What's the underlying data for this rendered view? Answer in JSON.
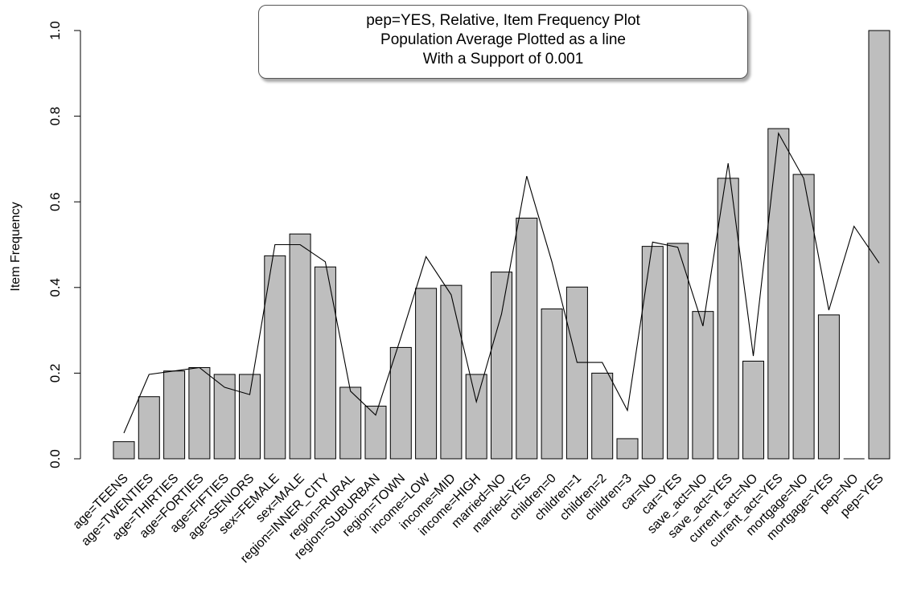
{
  "chart_data": {
    "type": "bar",
    "title_lines": [
      "pep=YES, Relative, Item Frequency Plot",
      "Population Average Plotted as a line",
      "With a Support of 0.001"
    ],
    "xlabel": "",
    "ylabel": "Item Frequency",
    "ylim": [
      0,
      1.0
    ],
    "yticks": [
      "0.0",
      "0.2",
      "0.4",
      "0.6",
      "0.8",
      "1.0"
    ],
    "grid": false,
    "categories": [
      "age=TEENS",
      "age=TWENTIES",
      "age=THIRTIES",
      "age=FORTIES",
      "age=FIFTIES",
      "age=SENIORS",
      "sex=FEMALE",
      "sex=MALE",
      "region=INNER_CITY",
      "region=RURAL",
      "region=SUBURBAN",
      "region=TOWN",
      "income=LOW",
      "income=MID",
      "income=HIGH",
      "married=NO",
      "married=YES",
      "children=0",
      "children=1",
      "children=2",
      "children=3",
      "car=NO",
      "car=YES",
      "save_act=NO",
      "save_act=YES",
      "current_act=NO",
      "current_act=YES",
      "mortgage=NO",
      "mortgage=YES",
      "pep=NO",
      "pep=YES"
    ],
    "series": [
      {
        "type": "bar",
        "color": "#bebebe",
        "values": [
          0.04,
          0.145,
          0.205,
          0.213,
          0.197,
          0.197,
          0.474,
          0.525,
          0.448,
          0.167,
          0.123,
          0.26,
          0.398,
          0.405,
          0.197,
          0.436,
          0.562,
          0.35,
          0.401,
          0.2,
          0.047,
          0.496,
          0.503,
          0.344,
          0.655,
          0.228,
          0.771,
          0.664,
          0.336,
          0.0,
          1.0
        ]
      },
      {
        "type": "line",
        "color": "#000000",
        "values": [
          0.06,
          0.197,
          0.205,
          0.213,
          0.167,
          0.15,
          0.5,
          0.5,
          0.46,
          0.158,
          0.102,
          0.283,
          0.472,
          0.383,
          0.133,
          0.338,
          0.66,
          0.46,
          0.225,
          0.225,
          0.113,
          0.506,
          0.494,
          0.31,
          0.69,
          0.24,
          0.76,
          0.655,
          0.347,
          0.543,
          0.457
        ]
      }
    ]
  }
}
